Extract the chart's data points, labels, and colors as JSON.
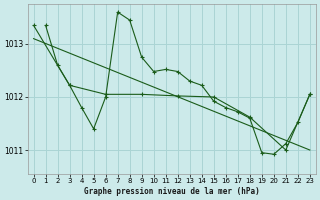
{
  "title": "Graphe pression niveau de la mer (hPa)",
  "bg_color": "#cceaea",
  "grid_color": "#aad4d4",
  "line_color": "#1a5c1a",
  "marker_color": "#1a5c1a",
  "xlim": [
    -0.5,
    23.5
  ],
  "ylim": [
    1010.55,
    1013.75
  ],
  "yticks": [
    1011,
    1012,
    1013
  ],
  "xticks": [
    0,
    1,
    2,
    3,
    4,
    5,
    6,
    7,
    8,
    9,
    10,
    11,
    12,
    13,
    14,
    15,
    16,
    17,
    18,
    19,
    20,
    21,
    22,
    23
  ],
  "series1": [
    [
      1,
      1013.35
    ],
    [
      2,
      1012.6
    ],
    [
      3,
      1012.22
    ],
    [
      4,
      1011.8
    ],
    [
      5,
      1011.4
    ],
    [
      6,
      1012.0
    ],
    [
      7,
      1013.6
    ],
    [
      8,
      1013.45
    ],
    [
      9,
      1012.75
    ],
    [
      10,
      1012.48
    ],
    [
      11,
      1012.52
    ],
    [
      12,
      1012.48
    ],
    [
      13,
      1012.3
    ],
    [
      14,
      1012.22
    ],
    [
      15,
      1011.92
    ],
    [
      16,
      1011.8
    ],
    [
      17,
      1011.72
    ],
    [
      18,
      1011.6
    ],
    [
      19,
      1010.95
    ],
    [
      20,
      1010.92
    ],
    [
      21,
      1011.12
    ],
    [
      22,
      1011.52
    ],
    [
      23,
      1012.05
    ]
  ],
  "series2": [
    [
      0,
      1013.35
    ],
    [
      3,
      1012.22
    ],
    [
      6,
      1012.05
    ],
    [
      9,
      1012.05
    ],
    [
      12,
      1012.02
    ],
    [
      15,
      1012.0
    ],
    [
      18,
      1011.62
    ],
    [
      21,
      1011.0
    ],
    [
      23,
      1012.05
    ]
  ],
  "series3_x": [
    0,
    23
  ],
  "series3_y": [
    1013.1,
    1011.0
  ]
}
